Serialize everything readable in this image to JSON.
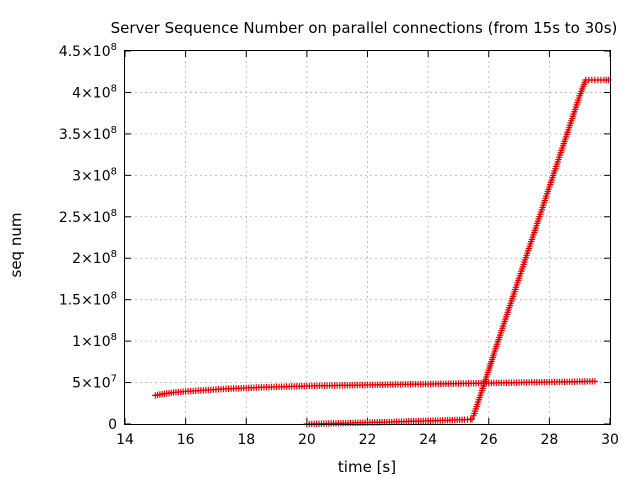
{
  "chart_data": {
    "type": "scatter",
    "title": "Server Sequence Number on parallel connections (from 15s to 30s)",
    "xlabel": "time [s]",
    "ylabel": "seq num",
    "xlim": [
      14,
      30
    ],
    "ylim": [
      0,
      450000000
    ],
    "grid": true,
    "legend": "none",
    "marker": "+",
    "color": "#e60000",
    "x_ticks": [
      {
        "value": 14,
        "label": "14"
      },
      {
        "value": 16,
        "label": "16"
      },
      {
        "value": 18,
        "label": "18"
      },
      {
        "value": 20,
        "label": "20"
      },
      {
        "value": 22,
        "label": "22"
      },
      {
        "value": 24,
        "label": "24"
      },
      {
        "value": 26,
        "label": "26"
      },
      {
        "value": 28,
        "label": "28"
      },
      {
        "value": 30,
        "label": "30"
      }
    ],
    "y_ticks": [
      {
        "value": 0,
        "label": "0",
        "mantissa": "",
        "exponent": ""
      },
      {
        "value": 50000000,
        "label": "5×10⁷",
        "mantissa": "5×10",
        "exponent": "7"
      },
      {
        "value": 100000000,
        "label": "1×10⁸",
        "mantissa": "1×10",
        "exponent": "8"
      },
      {
        "value": 150000000,
        "label": "1.5×10⁸",
        "mantissa": "1.5×10",
        "exponent": "8"
      },
      {
        "value": 200000000,
        "label": "2×10⁸",
        "mantissa": "2×10",
        "exponent": "8"
      },
      {
        "value": 250000000,
        "label": "2.5×10⁸",
        "mantissa": "2.5×10",
        "exponent": "8"
      },
      {
        "value": 300000000,
        "label": "3×10⁸",
        "mantissa": "3×10",
        "exponent": "8"
      },
      {
        "value": 350000000,
        "label": "3.5×10⁸",
        "mantissa": "3.5×10",
        "exponent": "8"
      },
      {
        "value": 400000000,
        "label": "4×10⁸",
        "mantissa": "4×10",
        "exponent": "8"
      },
      {
        "value": 450000000,
        "label": "4.5×10⁸",
        "mantissa": "4.5×10",
        "exponent": "8"
      }
    ],
    "series": [
      {
        "x": [
          15.0,
          15.3,
          15.6,
          16.0,
          16.5,
          17.0,
          17.5,
          18.0,
          18.5,
          19.0,
          19.5,
          20.0,
          20.5,
          21.0,
          21.5,
          22.0,
          22.5,
          23.0,
          23.5,
          24.0,
          24.5,
          25.0,
          25.5,
          26.0,
          26.5,
          27.0,
          27.5,
          28.0,
          28.5,
          29.0,
          29.5
        ],
        "y": [
          34500000,
          36500000,
          38000000,
          39300000,
          40500000,
          41700000,
          42700000,
          43500000,
          44200000,
          44800000,
          45300000,
          45800000,
          46200000,
          46500000,
          46800000,
          47100000,
          47400000,
          47700000,
          48000000,
          48200000,
          48500000,
          48800000,
          49100000,
          49400000,
          49700000,
          50000000,
          50300000,
          50600000,
          50900000,
          51200000,
          51500000
        ]
      },
      {
        "x": [
          20.0,
          20.4,
          20.8,
          21.2,
          21.6,
          22.0,
          22.4,
          22.8,
          23.2,
          23.6,
          24.0,
          24.4,
          24.8,
          25.2,
          25.4,
          25.45,
          25.5,
          25.6,
          25.8,
          26.0,
          26.2,
          26.4,
          26.6,
          26.8,
          27.0,
          27.2,
          27.4,
          27.6,
          27.8,
          28.0,
          28.2,
          28.4,
          28.6,
          28.8,
          29.0,
          29.2,
          29.4,
          29.6,
          29.8,
          29.95
        ],
        "y": [
          0,
          300000,
          700000,
          1000000,
          1400000,
          1800000,
          2100000,
          2500000,
          3000000,
          3400000,
          3800000,
          4200000,
          4700000,
          5200000,
          5500000,
          6000000,
          10000000,
          21000000,
          43000000,
          65000000,
          88000000,
          110000000,
          132000000,
          154000000,
          176000000,
          198000000,
          220000000,
          242000000,
          264000000,
          286000000,
          308000000,
          330000000,
          352000000,
          374000000,
          396000000,
          415000000,
          415000000,
          415000000,
          415000000,
          415000000
        ]
      }
    ]
  }
}
